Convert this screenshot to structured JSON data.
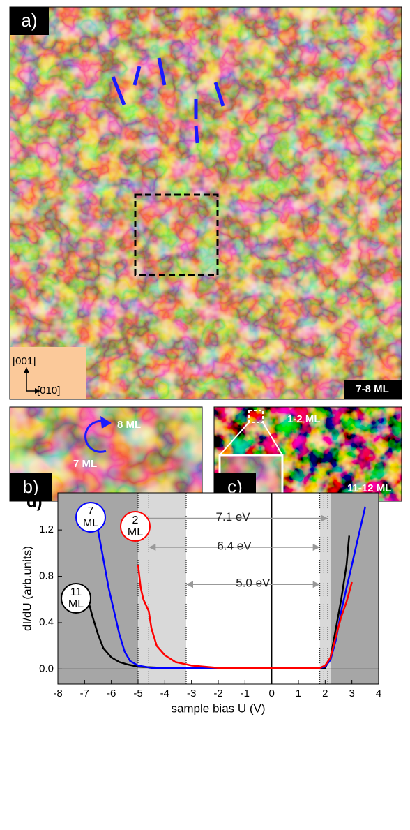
{
  "panels": {
    "a": {
      "label": "a)",
      "dir_y": "[001]",
      "dir_x": "[010]",
      "thickness": "7-8 ML"
    },
    "b": {
      "label": "b)",
      "upper": "8 ML",
      "lower": "7 ML"
    },
    "c": {
      "label": "c)",
      "upper": "1-2 ML",
      "lower": "11-12 ML"
    }
  },
  "chart_data": {
    "type": "line",
    "title": "d)",
    "xlabel": "sample bias U (V)",
    "ylabel": "dI/dU (arb.units)",
    "xlim": [
      -8,
      4
    ],
    "ylim": [
      -0.13,
      1.52
    ],
    "xticks": [
      -8,
      -7,
      -6,
      -5,
      -4,
      -3,
      -2,
      -1,
      0,
      1,
      2,
      3,
      4
    ],
    "yticks": [
      {
        "value": 0,
        "label": "0.0"
      },
      {
        "value": 0.4,
        "label": "0.4"
      },
      {
        "value": 0.8,
        "label": "0.8"
      },
      {
        "value": 1.2,
        "label": "1.2"
      }
    ],
    "regions": [
      {
        "from": -8,
        "to": -5,
        "color": "#a6a6a6"
      },
      {
        "from": -5,
        "to": -3.2,
        "color": "#d9d9d9"
      },
      {
        "from": 1.8,
        "to": 2.2,
        "color": "#d9d9d9"
      },
      {
        "from": 2.2,
        "to": 4,
        "color": "#a6a6a6"
      }
    ],
    "vlines": [
      -5,
      -4.6,
      -3.2,
      1.8,
      1.95,
      2.1
    ],
    "annotations": [
      {
        "text": "7.1 eV",
        "x0": -5,
        "x1": 2.1,
        "y": 1.3
      },
      {
        "text": "6.4 eV",
        "x0": -4.6,
        "x1": 1.8,
        "y": 1.05
      },
      {
        "text": "5.0 eV",
        "x0": -3.2,
        "x1": 1.8,
        "y": 0.73
      }
    ],
    "series": [
      {
        "label": [
          "11",
          "ML"
        ],
        "color": "#000000",
        "x": [
          -6.9,
          -6.7,
          -6.5,
          -6.3,
          -6.0,
          -5.7,
          -5.4,
          -5.0,
          -4.0,
          -2.0,
          0.0,
          1.5,
          2.0,
          2.2,
          2.4,
          2.6,
          2.8,
          2.9
        ],
        "values": [
          0.62,
          0.45,
          0.3,
          0.18,
          0.1,
          0.06,
          0.04,
          0.02,
          0.01,
          0.01,
          0.01,
          0.01,
          0.01,
          0.1,
          0.35,
          0.6,
          0.9,
          1.15
        ]
      },
      {
        "label": [
          "7",
          "ML"
        ],
        "color": "#0000ff",
        "x": [
          -6.5,
          -6.3,
          -6.1,
          -5.9,
          -5.7,
          -5.5,
          -5.3,
          -5.0,
          -4.5,
          -2.0,
          0.0,
          1.8,
          2.0,
          2.2,
          2.4,
          2.6,
          2.8,
          3.0,
          3.2,
          3.4,
          3.5
        ],
        "values": [
          1.2,
          0.95,
          0.7,
          0.5,
          0.3,
          0.15,
          0.07,
          0.03,
          0.01,
          0.01,
          0.01,
          0.01,
          0.02,
          0.08,
          0.25,
          0.5,
          0.7,
          0.9,
          1.1,
          1.3,
          1.4
        ]
      },
      {
        "label": [
          "2",
          "ML"
        ],
        "color": "#ff0000",
        "x": [
          -5.0,
          -4.9,
          -4.8,
          -4.7,
          -4.6,
          -4.5,
          -4.3,
          -4.0,
          -3.6,
          -3.0,
          -2.0,
          0.0,
          1.8,
          2.0,
          2.2,
          2.4,
          2.6,
          2.8,
          3.0
        ],
        "values": [
          0.9,
          0.7,
          0.6,
          0.55,
          0.5,
          0.35,
          0.2,
          0.12,
          0.06,
          0.03,
          0.01,
          0.01,
          0.01,
          0.03,
          0.1,
          0.28,
          0.45,
          0.58,
          0.75
        ]
      }
    ]
  }
}
